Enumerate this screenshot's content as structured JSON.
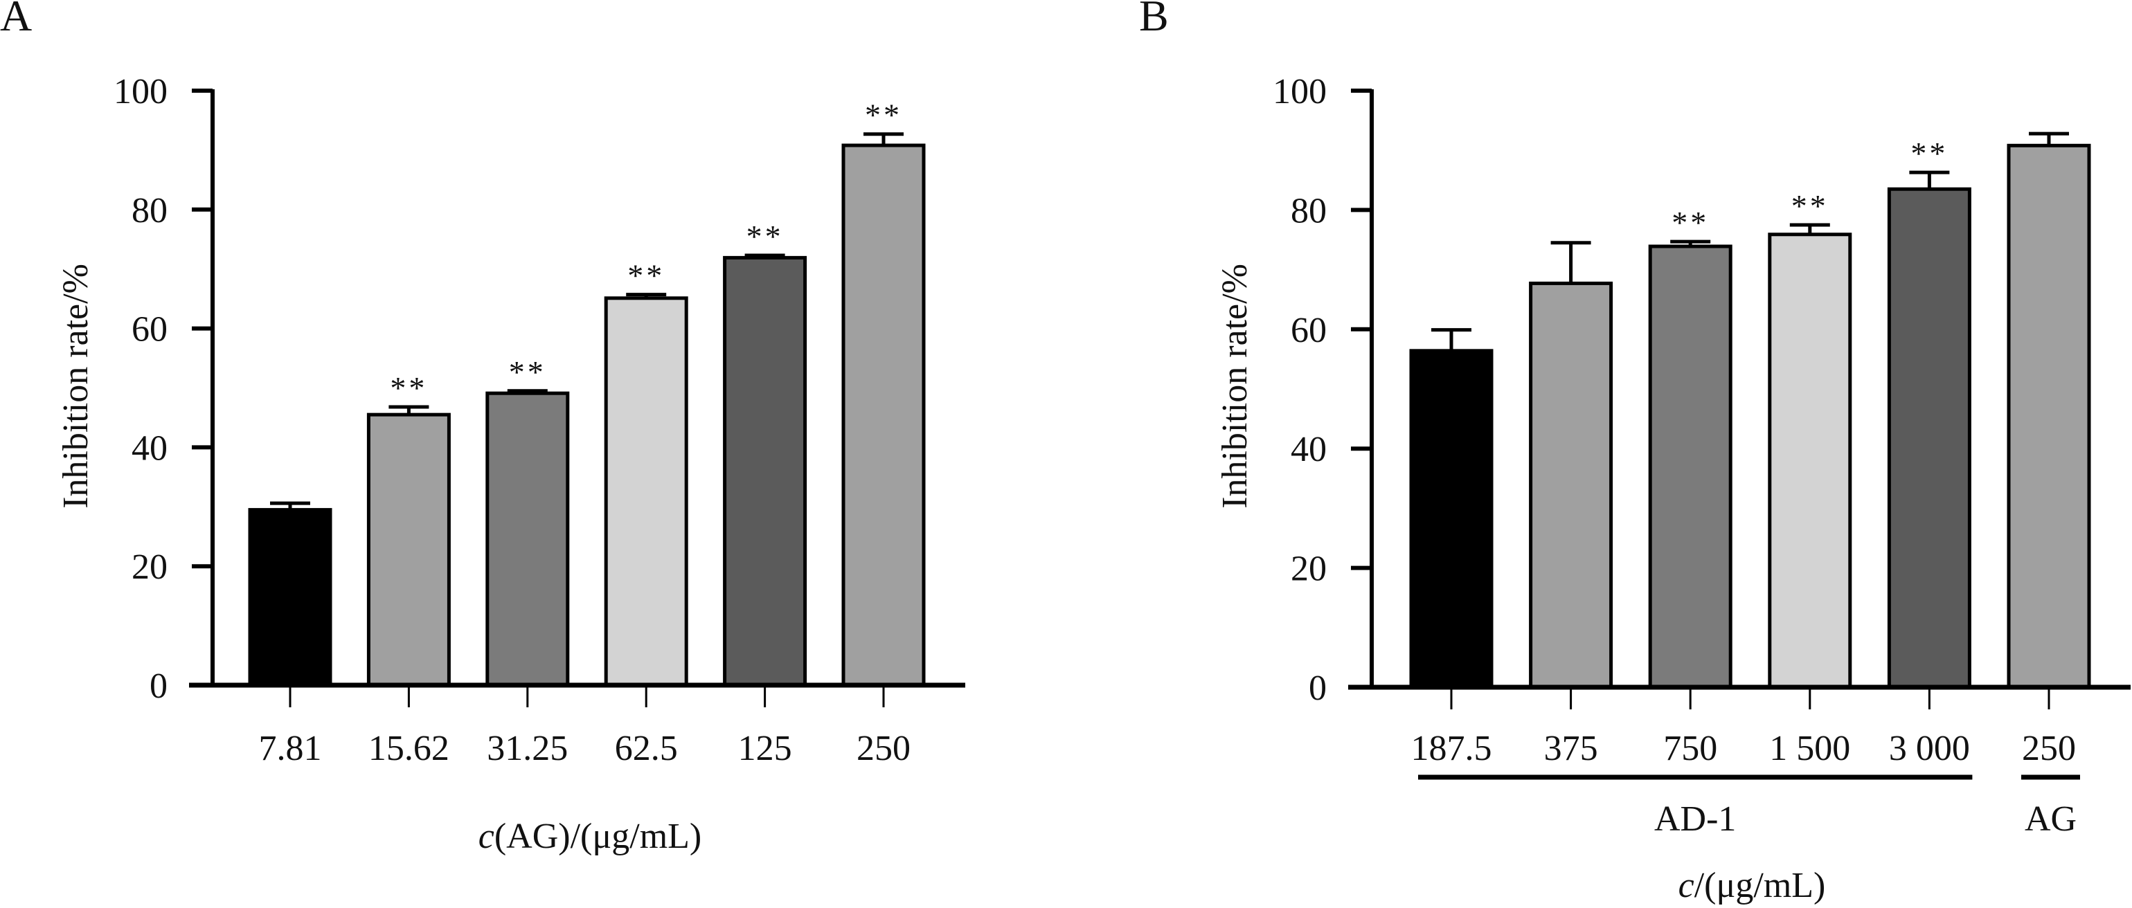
{
  "figure": {
    "panels": [
      "A",
      "B"
    ]
  },
  "chart_data": [
    {
      "type": "bar",
      "panel_label": "A",
      "title": "",
      "xlabel": "c(AG)/(μg/mL)",
      "xlabel_italic_prefix": "c",
      "xlabel_rest": "(AG)/(μg/mL)",
      "ylabel": "Inhibition rate/%",
      "ylim": [
        0,
        100
      ],
      "yticks": [
        0,
        20,
        40,
        60,
        80,
        100
      ],
      "grid": false,
      "legend": "none",
      "categories": [
        "7.81",
        "15.62",
        "31.25",
        "62.5",
        "125",
        "250"
      ],
      "values": [
        29.5,
        45.5,
        49.1,
        65.1,
        71.9,
        90.8
      ],
      "errors": [
        1.1,
        1.3,
        0.4,
        0.6,
        0.4,
        1.9
      ],
      "significance": [
        "",
        "**",
        "**",
        "**",
        "**",
        "**"
      ],
      "bar_colors": [
        "#000000",
        "#a0a0a0",
        "#7b7b7b",
        "#d3d3d3",
        "#5b5b5b",
        "#a0a0a0"
      ],
      "groups": []
    },
    {
      "type": "bar",
      "panel_label": "B",
      "title": "",
      "xlabel": "c/(μg/mL)",
      "xlabel_italic_prefix": "c",
      "xlabel_rest": "/(μg/mL)",
      "ylabel": "Inhibition rate/%",
      "ylim": [
        0,
        100
      ],
      "yticks": [
        0,
        20,
        40,
        60,
        80,
        100
      ],
      "grid": false,
      "legend": "none",
      "categories": [
        "187.5",
        "375",
        "750",
        "1 500",
        "3 000",
        "250"
      ],
      "values": [
        56.4,
        67.7,
        73.9,
        75.9,
        83.5,
        90.8
      ],
      "errors": [
        3.5,
        6.8,
        0.8,
        1.6,
        2.8,
        2.0
      ],
      "significance": [
        "",
        "",
        "**",
        "**",
        "**",
        ""
      ],
      "bar_colors": [
        "#000000",
        "#a0a0a0",
        "#7b7b7b",
        "#d3d3d3",
        "#5b5b5b",
        "#a0a0a0"
      ],
      "groups": [
        {
          "label": "AD-1",
          "from": 0,
          "to": 4
        },
        {
          "label": "AG",
          "from": 5,
          "to": 5
        }
      ]
    }
  ]
}
